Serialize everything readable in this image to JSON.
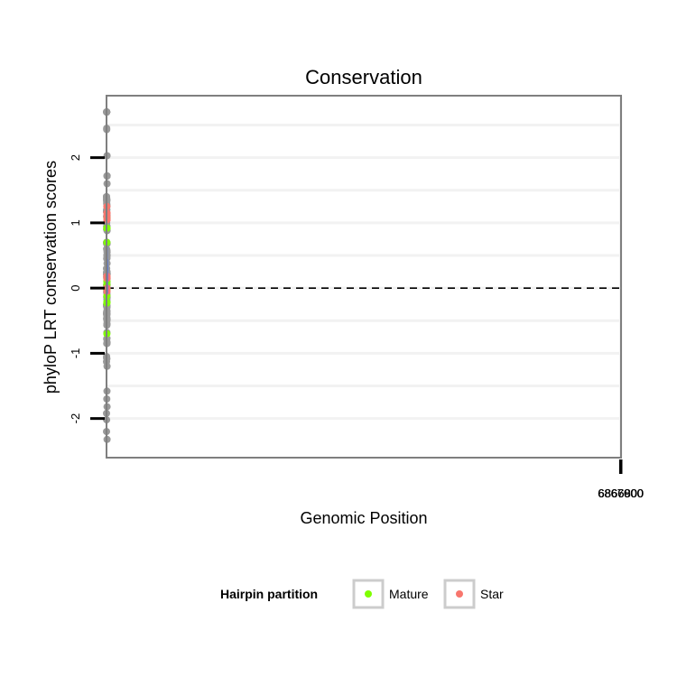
{
  "chart_data": {
    "type": "scatter",
    "title": "Conservation",
    "xlabel": "Genomic Position",
    "ylabel": "phyloP LRT conservation scores",
    "x_reversed": true,
    "xlim": [
      7067060,
      6866795
    ],
    "ylim": [
      -2.6,
      2.95
    ],
    "x_ticks": [
      {
        "value": 6867000,
        "label": "6867000"
      },
      {
        "value": 6866900,
        "label": "6866900"
      },
      {
        "value": 6866800,
        "label": "6866800"
      }
    ],
    "y_ticks": [
      {
        "value": -2,
        "label": "-2"
      },
      {
        "value": -1,
        "label": "-1"
      },
      {
        "value": 0,
        "label": "0"
      },
      {
        "value": 1,
        "label": "1"
      },
      {
        "value": 2,
        "label": "2"
      }
    ],
    "grid": true,
    "reference_line": {
      "y": 0,
      "style": "dashed"
    },
    "colors": {
      "other": "#999999",
      "Mature": "#7FFF00",
      "Star": "#F8766D",
      "smooth": "#3366FF",
      "ribbon": "#C8C8C8",
      "panel_bg": "#FFFFFF",
      "grid": "#F2F2F2"
    },
    "legend": {
      "title": "Hairpin partition",
      "position": "bottom",
      "entries": [
        {
          "label": "Mature",
          "color": "#7FFF00"
        },
        {
          "label": "Star",
          "color": "#F8766D"
        }
      ]
    },
    "series": [
      {
        "group": "Other",
        "color": "#999999",
        "points": [
          [
            7067059,
            -0.26
          ],
          [
            7067057,
            -2.2
          ],
          [
            7067056,
            0.24
          ],
          [
            7067054,
            -1.92
          ],
          [
            7067052,
            -1.13
          ],
          [
            7067050,
            0.21
          ],
          [
            7067048,
            1.18
          ],
          [
            7067046,
            1.4
          ],
          [
            7067045,
            1.4
          ],
          [
            7067043,
            1.4
          ],
          [
            7067042,
            2.7
          ],
          [
            7067041,
            -0.06
          ],
          [
            7067039,
            -0.38
          ],
          [
            7067038,
            -0.47
          ],
          [
            7067036,
            -2.02
          ],
          [
            7067034,
            -0.28
          ],
          [
            7067033,
            -1.07
          ],
          [
            7067031,
            1.37
          ],
          [
            7067030,
            0.6
          ],
          [
            7067029,
            0.17
          ],
          [
            7067027,
            -0.25
          ],
          [
            7067026,
            1.2
          ],
          [
            7067025,
            2.7
          ],
          [
            7067024,
            -1.05
          ],
          [
            7067022,
            0.3
          ],
          [
            7067021,
            0.04
          ],
          [
            7067019,
            1.1
          ],
          [
            7067017,
            0.3
          ],
          [
            7067015,
            1.35
          ],
          [
            7067013,
            1.35
          ],
          [
            7067012,
            0.7
          ],
          [
            7067011,
            0.68
          ],
          [
            7067010,
            1.17
          ],
          [
            7067008,
            1.17
          ],
          [
            7067007,
            2.7
          ],
          [
            7067006,
            2.7
          ],
          [
            7067004,
            2.7
          ],
          [
            7067003,
            2.7
          ],
          [
            7067002,
            2.7
          ],
          [
            7067001,
            2.7
          ],
          [
            7067000,
            2.7
          ],
          [
            7066999,
            2.7
          ],
          [
            7066997,
            2.7
          ],
          [
            7066996,
            2.7
          ],
          [
            7066995,
            1.0
          ],
          [
            7066994,
            -0.03
          ],
          [
            7066993,
            1.3
          ],
          [
            7066991,
            2.45
          ],
          [
            7066990,
            2.7
          ],
          [
            7066989,
            1.38
          ],
          [
            7066988,
            2.43
          ],
          [
            7066987,
            2.7
          ],
          [
            7066986,
            2.7
          ],
          [
            7066985,
            -0.36
          ],
          [
            7066984,
            -0.78
          ],
          [
            7066982,
            0.45
          ],
          [
            7066981,
            1.32
          ],
          [
            7066980,
            0.9
          ],
          [
            7066979,
            0.94
          ],
          [
            7066977,
            0.7
          ],
          [
            7066976,
            0.7
          ],
          [
            7066975,
            -0.27
          ],
          [
            7066974,
            -0.4
          ],
          [
            7066973,
            -0.27
          ],
          [
            7066972,
            0.7
          ],
          [
            7066971,
            -0.4
          ],
          [
            7066970,
            -0.27
          ],
          [
            7066969,
            0.7
          ],
          [
            7066968,
            -0.4
          ],
          [
            7066967,
            -0.27
          ],
          [
            7066966,
            0.7
          ],
          [
            7066965,
            -0.4
          ],
          [
            7066964,
            -1.7
          ],
          [
            7066963,
            0.7
          ],
          [
            7066962,
            -0.4
          ],
          [
            7066961,
            -0.27
          ],
          [
            7066960,
            0.7
          ],
          [
            7066959,
            -0.4
          ],
          [
            7066958,
            -0.27
          ],
          [
            7066957,
            0.7
          ],
          [
            7066956,
            -0.4
          ],
          [
            7066955,
            0.7
          ],
          [
            7066954,
            0.7
          ],
          [
            7066953,
            0.7
          ],
          [
            7066951,
            -0.27
          ],
          [
            7066950,
            -0.4
          ],
          [
            7066949,
            -0.27
          ],
          [
            7066948,
            0.95
          ],
          [
            7066947,
            -0.13
          ],
          [
            7066946,
            0.9
          ],
          [
            7066945,
            0.95
          ],
          [
            7066944,
            -0.14
          ],
          [
            7066943,
            0.9
          ],
          [
            7066942,
            -0.47
          ],
          [
            7066941,
            -0.85
          ],
          [
            7066940,
            -0.42
          ],
          [
            7066939,
            0.05
          ],
          [
            7066938,
            -0.38
          ],
          [
            7066937,
            1.12
          ],
          [
            7066936,
            1.2
          ],
          [
            7066935,
            -0.36
          ],
          [
            7066934,
            0.15
          ],
          [
            7066933,
            1.28
          ],
          [
            7066932,
            -0.27
          ],
          [
            7066931,
            -0.14
          ],
          [
            7066930,
            0.15
          ],
          [
            7066929,
            1.25
          ],
          [
            7066928,
            -0.17
          ],
          [
            7066926,
            0.95
          ],
          [
            7066925,
            0.2
          ],
          [
            7066924,
            0.05
          ],
          [
            7066923,
            1.1
          ],
          [
            7066922,
            1.1
          ],
          [
            7066921,
            1.1
          ],
          [
            7066920,
            1.1
          ],
          [
            7066919,
            1.1
          ],
          [
            7066917,
            1.1
          ],
          [
            7066916,
            1.1
          ],
          [
            7066915,
            1.1
          ],
          [
            7066914,
            -1.08
          ],
          [
            7066913,
            1.1
          ],
          [
            7066912,
            -0.45
          ],
          [
            7066911,
            -0.68
          ],
          [
            7066910,
            -0.57
          ],
          [
            7066909,
            -0.07
          ],
          [
            7066908,
            0.1
          ],
          [
            7066907,
            0.05
          ],
          [
            7066906,
            0.1
          ],
          [
            7066905,
            0.1
          ],
          [
            7066904,
            0.5
          ],
          [
            7066903,
            0.68
          ],
          [
            7066902,
            0.2
          ],
          [
            7066901,
            -0.27
          ],
          [
            7066899,
            0.0
          ],
          [
            7066898,
            1.08
          ],
          [
            7066896,
            1.08
          ],
          [
            7066895,
            0.2
          ],
          [
            7066894,
            -0.14
          ],
          [
            7066893,
            -0.35
          ],
          [
            7066892,
            -0.1
          ],
          [
            7066891,
            1.1
          ],
          [
            7066889,
            0.58
          ],
          [
            7066888,
            -0.3
          ],
          [
            7066887,
            -0.5
          ],
          [
            7066886,
            1.1
          ],
          [
            7066885,
            1.08
          ],
          [
            7066884,
            1.1
          ],
          [
            7066883,
            1.1
          ],
          [
            7066881,
            -0.55
          ],
          [
            7066880,
            -0.2
          ],
          [
            7066879,
            -0.77
          ],
          [
            7066877,
            -0.85
          ],
          [
            7066876,
            -1.58
          ],
          [
            7066875,
            1.1
          ],
          [
            7066874,
            0.5
          ],
          [
            7066872,
            0.0
          ],
          [
            7066871,
            0.46
          ],
          [
            7066869,
            1.35
          ],
          [
            7066868,
            -0.55
          ],
          [
            7066866,
            0.22
          ],
          [
            7066864,
            0.55
          ],
          [
            7066863,
            1.72
          ],
          [
            7066862,
            1.6
          ],
          [
            7066861,
            0.5
          ],
          [
            7066860,
            1.72
          ],
          [
            7066859,
            0.0
          ],
          [
            7066857,
            0.38
          ],
          [
            7066856,
            1.72
          ],
          [
            7066855,
            0.68
          ],
          [
            7066854,
            0.68
          ],
          [
            7066853,
            -0.48
          ],
          [
            7066852,
            0.15
          ],
          [
            7066850,
            0.22
          ],
          [
            7066849,
            0.22
          ],
          [
            7066848,
            0.22
          ],
          [
            7066847,
            2.03
          ],
          [
            7066846,
            0.22
          ],
          [
            7066845,
            0.05
          ],
          [
            7066844,
            -2.32
          ],
          [
            7066843,
            0.22
          ],
          [
            7066841,
            1.72
          ],
          [
            7066840,
            0.22
          ],
          [
            7066839,
            0.05
          ],
          [
            7066837,
            -1.2
          ],
          [
            7066836,
            -1.82
          ],
          [
            7066835,
            0.88
          ],
          [
            7066834,
            0.25
          ],
          [
            7066833,
            -0.83
          ],
          [
            7066832,
            -0.14
          ]
        ]
      },
      {
        "group": "Mature",
        "color": "#7FFF00",
        "points": [
          [
            7066926,
            -0.12
          ],
          [
            7066925,
            0.7
          ],
          [
            7066924,
            -0.22
          ],
          [
            7066923,
            0.92
          ],
          [
            7066922,
            -0.23
          ],
          [
            7066921,
            0.92
          ],
          [
            7066920,
            -0.02
          ],
          [
            7066919,
            0.92
          ],
          [
            7066918,
            0.92
          ],
          [
            7066917,
            -0.7
          ],
          [
            7066916,
            0.92
          ],
          [
            7066915,
            -0.22
          ],
          [
            7066914,
            0.15
          ],
          [
            7066913,
            0.1
          ],
          [
            7066912,
            0.1
          ],
          [
            7066911,
            1.08
          ],
          [
            7066910,
            0.05
          ],
          [
            7066909,
            0.05
          ]
        ]
      },
      {
        "group": "Star",
        "color": "#F8766D",
        "points": [
          [
            7066903,
            1.25
          ],
          [
            7066902,
            0.18
          ],
          [
            7066901,
            1.15
          ],
          [
            7066900,
            0.15
          ],
          [
            7066899,
            1.15
          ],
          [
            7066898,
            0.18
          ],
          [
            7066897,
            1.15
          ],
          [
            7066896,
            0.15
          ],
          [
            7066895,
            1.05
          ],
          [
            7066894,
            0.15
          ],
          [
            7066893,
            -0.05
          ],
          [
            7066892,
            1.05
          ],
          [
            7066891,
            1.1
          ],
          [
            7066890,
            1.05
          ],
          [
            7066889,
            1.05
          ],
          [
            7066888,
            1.05
          ],
          [
            7066887,
            1.1
          ],
          [
            7066886,
            0.0
          ],
          [
            7066885,
            1.05
          ]
        ]
      }
    ],
    "smooth": {
      "method": "loess",
      "x": [
        7067055,
        7067045,
        7067035,
        7067025,
        7067015,
        7067005,
        7066995,
        7066985,
        7066975,
        7066965,
        7066955,
        7066945,
        7066935,
        7066925,
        7066915,
        7066905,
        7066895,
        7066885,
        7066875,
        7066865,
        7066855,
        7066845,
        7066835
      ],
      "y": [
        0.22,
        0.35,
        0.47,
        0.56,
        0.61,
        0.64,
        0.62,
        0.53,
        0.4,
        0.3,
        0.25,
        0.25,
        0.26,
        0.32,
        0.4,
        0.43,
        0.44,
        0.43,
        0.38,
        0.3,
        0.18,
        0.05,
        -0.09
      ],
      "se_upper": [
        0.65,
        0.7,
        0.72,
        0.75,
        0.78,
        0.8,
        0.77,
        0.66,
        0.52,
        0.4,
        0.35,
        0.35,
        0.36,
        0.42,
        0.52,
        0.57,
        0.57,
        0.56,
        0.51,
        0.45,
        0.37,
        0.29,
        0.26
      ],
      "se_lower": [
        -0.21,
        0.0,
        0.22,
        0.37,
        0.44,
        0.48,
        0.47,
        0.4,
        0.28,
        0.2,
        0.15,
        0.15,
        0.16,
        0.22,
        0.28,
        0.29,
        0.31,
        0.3,
        0.25,
        0.15,
        -0.01,
        -0.19,
        -0.44
      ]
    }
  }
}
